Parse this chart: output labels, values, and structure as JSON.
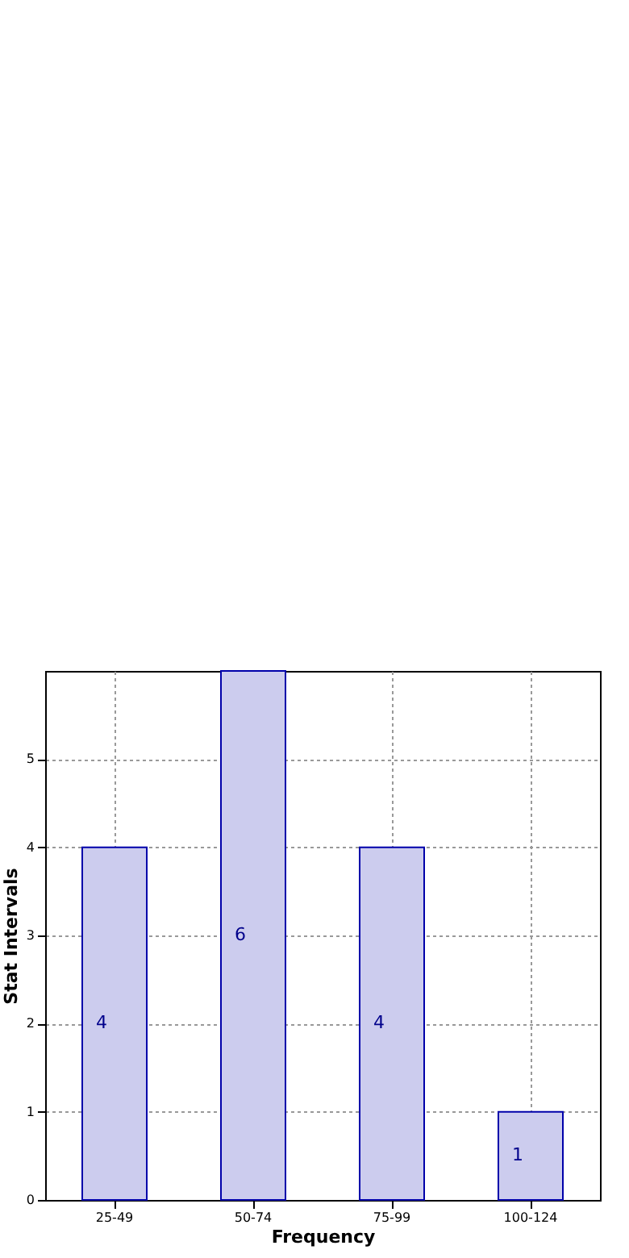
{
  "chart_data": {
    "type": "bar",
    "xlabel": "Frequency",
    "ylabel": "Stat Intervals",
    "categories": [
      "25-49",
      "50-74",
      "75-99",
      "100-124"
    ],
    "values": [
      4,
      6,
      4,
      1
    ],
    "color": "#ccccee",
    "ylim": [
      0,
      6
    ],
    "yticks": [
      0,
      1,
      2,
      3,
      4,
      5
    ],
    "grid": true,
    "data_labels": true
  }
}
